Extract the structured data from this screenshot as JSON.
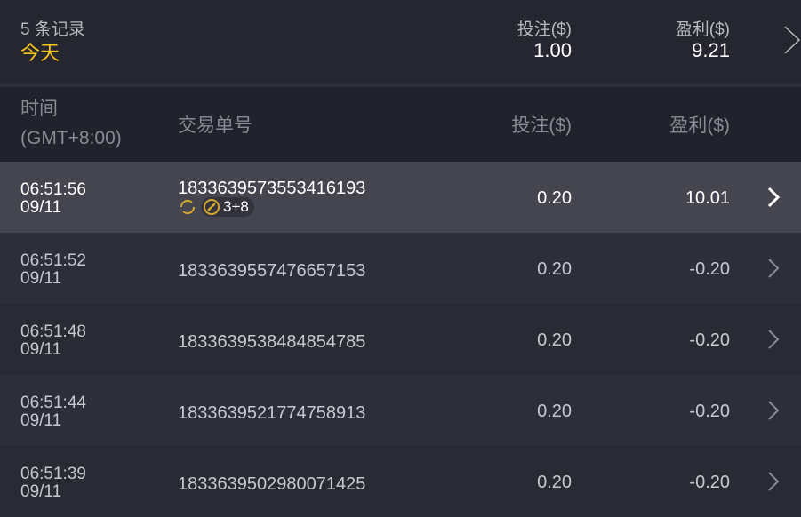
{
  "summary": {
    "record_count": "5 条记录",
    "period": "今天",
    "bet_label": "投注($)",
    "bet_value": "1.00",
    "profit_label": "盈利($)",
    "profit_value": "9.21"
  },
  "columns": {
    "time_line1": "时间",
    "time_line2": "(GMT+8:00)",
    "id": "交易单号",
    "bet": "投注($)",
    "profit": "盈利($)"
  },
  "colors": {
    "accent": "#f5c518",
    "highlight_row": "#45454f"
  },
  "rows": [
    {
      "time": "06:51:56",
      "date": "09/11",
      "id": "1833639573553416193",
      "bet": "0.20",
      "profit": "10.01",
      "tag": "3+8",
      "icons": [
        "refresh-icon",
        "bonus-icon"
      ]
    },
    {
      "time": "06:51:52",
      "date": "09/11",
      "id": "1833639557476657153",
      "bet": "0.20",
      "profit": "-0.20"
    },
    {
      "time": "06:51:48",
      "date": "09/11",
      "id": "1833639538484854785",
      "bet": "0.20",
      "profit": "-0.20"
    },
    {
      "time": "06:51:44",
      "date": "09/11",
      "id": "1833639521774758913",
      "bet": "0.20",
      "profit": "-0.20"
    },
    {
      "time": "06:51:39",
      "date": "09/11",
      "id": "1833639502980071425",
      "bet": "0.20",
      "profit": "-0.20"
    }
  ]
}
